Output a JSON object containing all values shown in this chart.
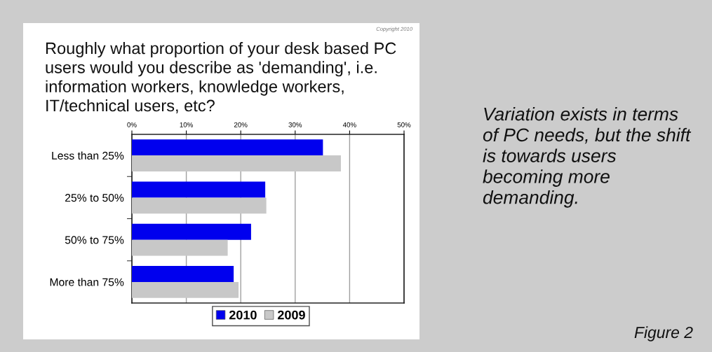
{
  "chart_data": {
    "type": "bar",
    "orientation": "horizontal",
    "title": "Roughly what proportion of your desk based PC\nusers would you describe as 'demanding', i.e.\ninformation workers, knowledge workers,\nIT/technical users, etc?",
    "categories": [
      "Less than 25%",
      "25% to 50%",
      "50% to 75%",
      "More than 75%"
    ],
    "series": [
      {
        "name": "2010",
        "color": "#0000ee",
        "values": [
          35.1,
          24.5,
          21.9,
          18.7
        ]
      },
      {
        "name": "2009",
        "color": "#c8c8c8",
        "values": [
          38.4,
          24.7,
          17.6,
          19.6
        ]
      }
    ],
    "xlim": [
      0,
      50
    ],
    "xticks": [
      {
        "value": 0,
        "label": "0%"
      },
      {
        "value": 10,
        "label": "10%"
      },
      {
        "value": 20,
        "label": "20%"
      },
      {
        "value": 30,
        "label": "30%"
      },
      {
        "value": 40,
        "label": "40%"
      },
      {
        "value": 50,
        "label": "50%"
      }
    ],
    "grid": "x",
    "legend": "bottom",
    "annotations": [
      "Copyright 2010",
      "Variation exists in terms\nof PC needs, but the shift\nis towards users\nbecoming more\ndemanding.",
      "Figure 2"
    ]
  }
}
